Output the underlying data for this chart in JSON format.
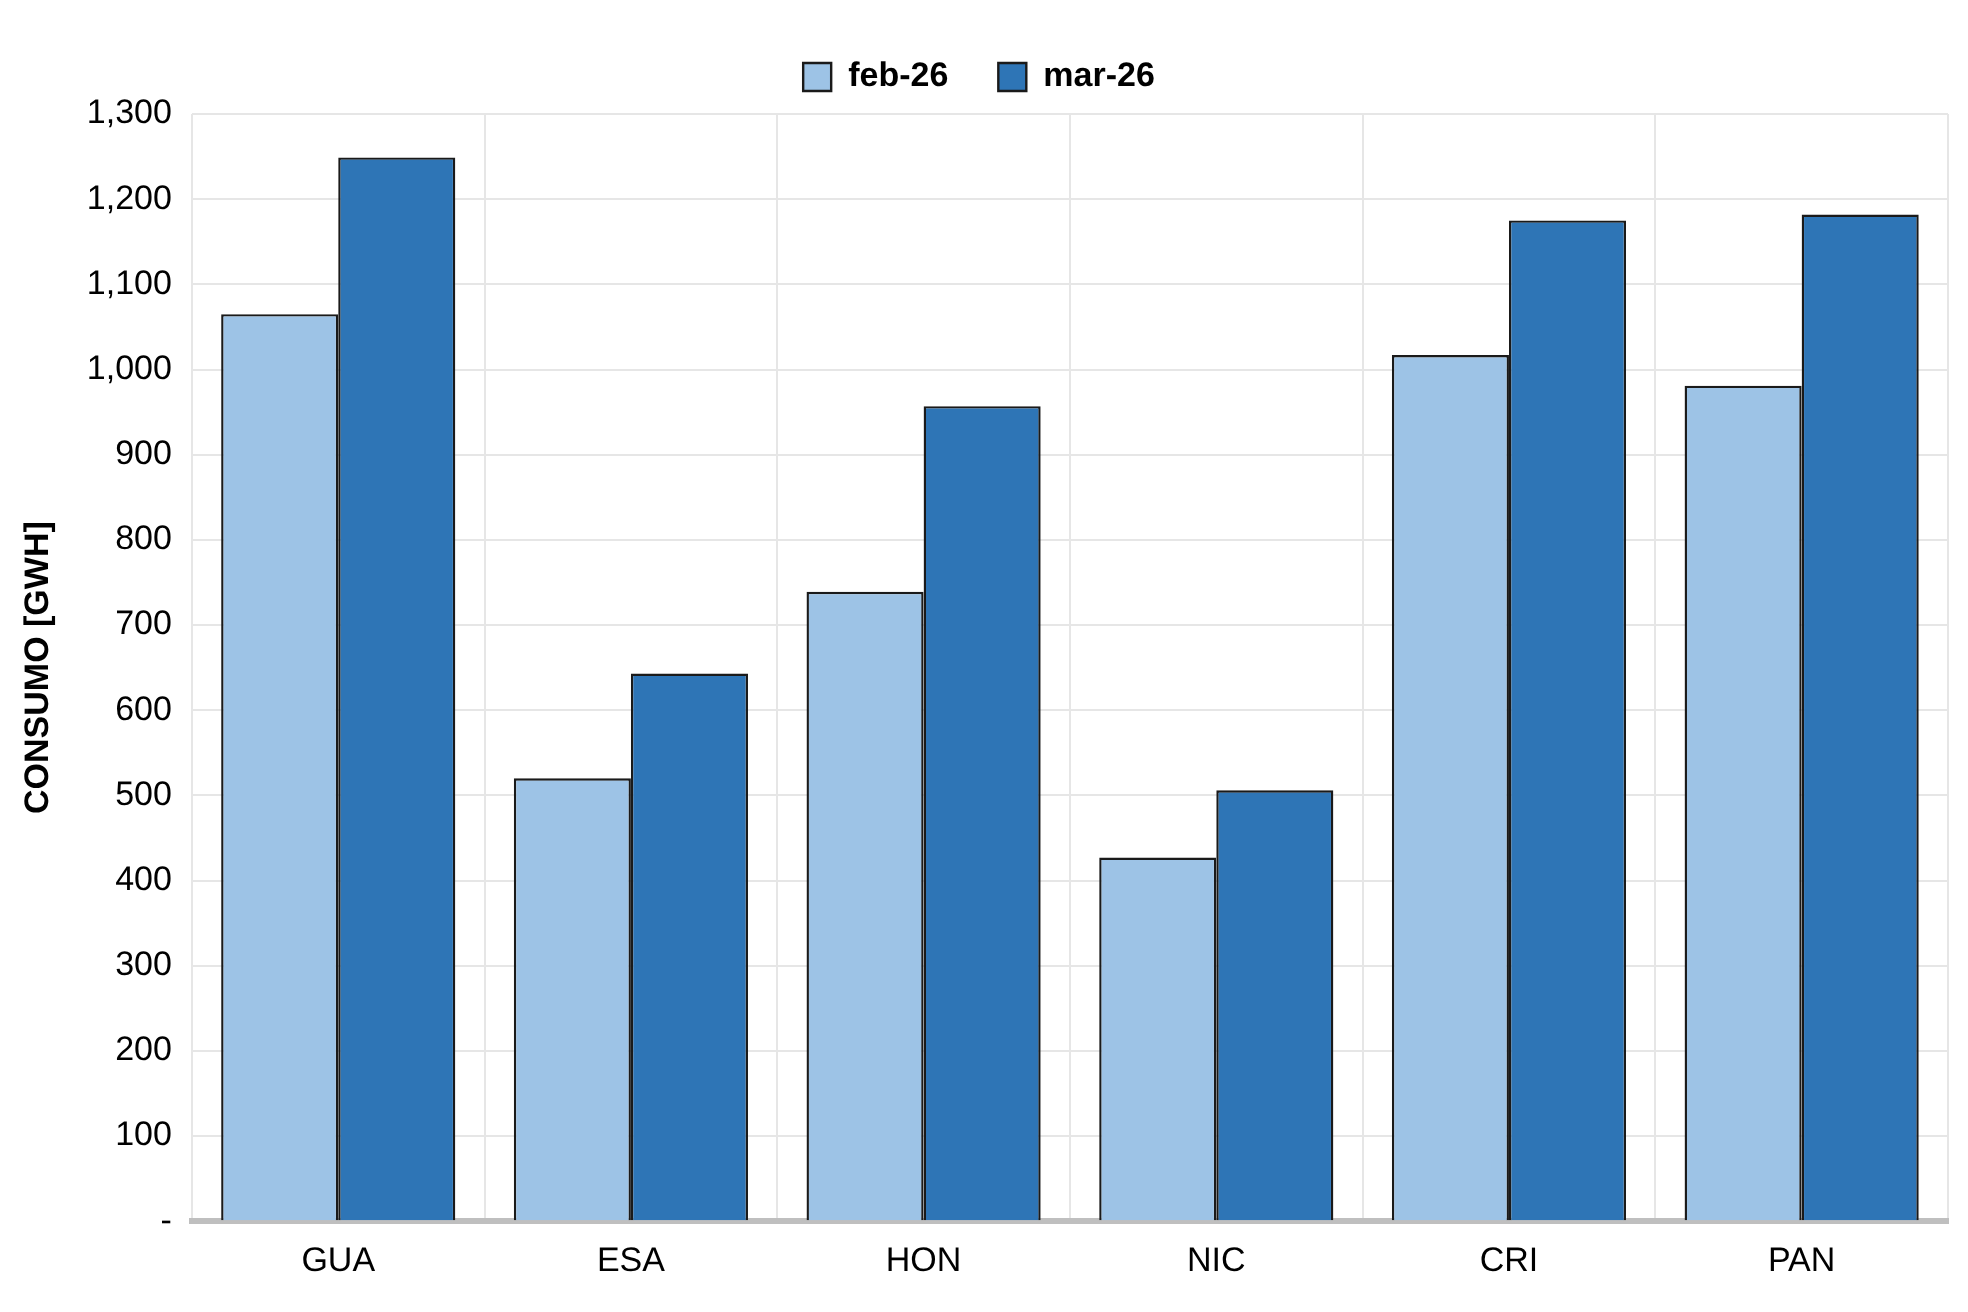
{
  "chart_data": {
    "type": "bar",
    "ylabel": "CONSUMO [GWH]",
    "categories": [
      "GUA",
      "ESA",
      "HON",
      "NIC",
      "CRI",
      "PAN"
    ],
    "series": [
      {
        "name": "feb-26",
        "color": "#9dc3e6",
        "values": [
          1065,
          520,
          739,
          427,
          1017,
          981
        ]
      },
      {
        "name": "mar-26",
        "color": "#2e75b6",
        "values": [
          1249,
          643,
          957,
          506,
          1175,
          1182
        ]
      }
    ],
    "ylim": [
      0,
      1300
    ],
    "yticks": [
      {
        "value": 0,
        "label": "-"
      },
      {
        "value": 100,
        "label": "100"
      },
      {
        "value": 200,
        "label": "200"
      },
      {
        "value": 300,
        "label": "300"
      },
      {
        "value": 400,
        "label": "400"
      },
      {
        "value": 500,
        "label": "500"
      },
      {
        "value": 600,
        "label": "600"
      },
      {
        "value": 700,
        "label": "700"
      },
      {
        "value": 800,
        "label": "800"
      },
      {
        "value": 900,
        "label": "900"
      },
      {
        "value": 1000,
        "label": "1,000"
      },
      {
        "value": 1100,
        "label": "1,100"
      },
      {
        "value": 1200,
        "label": "1,200"
      },
      {
        "value": 1300,
        "label": "1,300"
      }
    ],
    "grid": true,
    "legend": "top"
  }
}
